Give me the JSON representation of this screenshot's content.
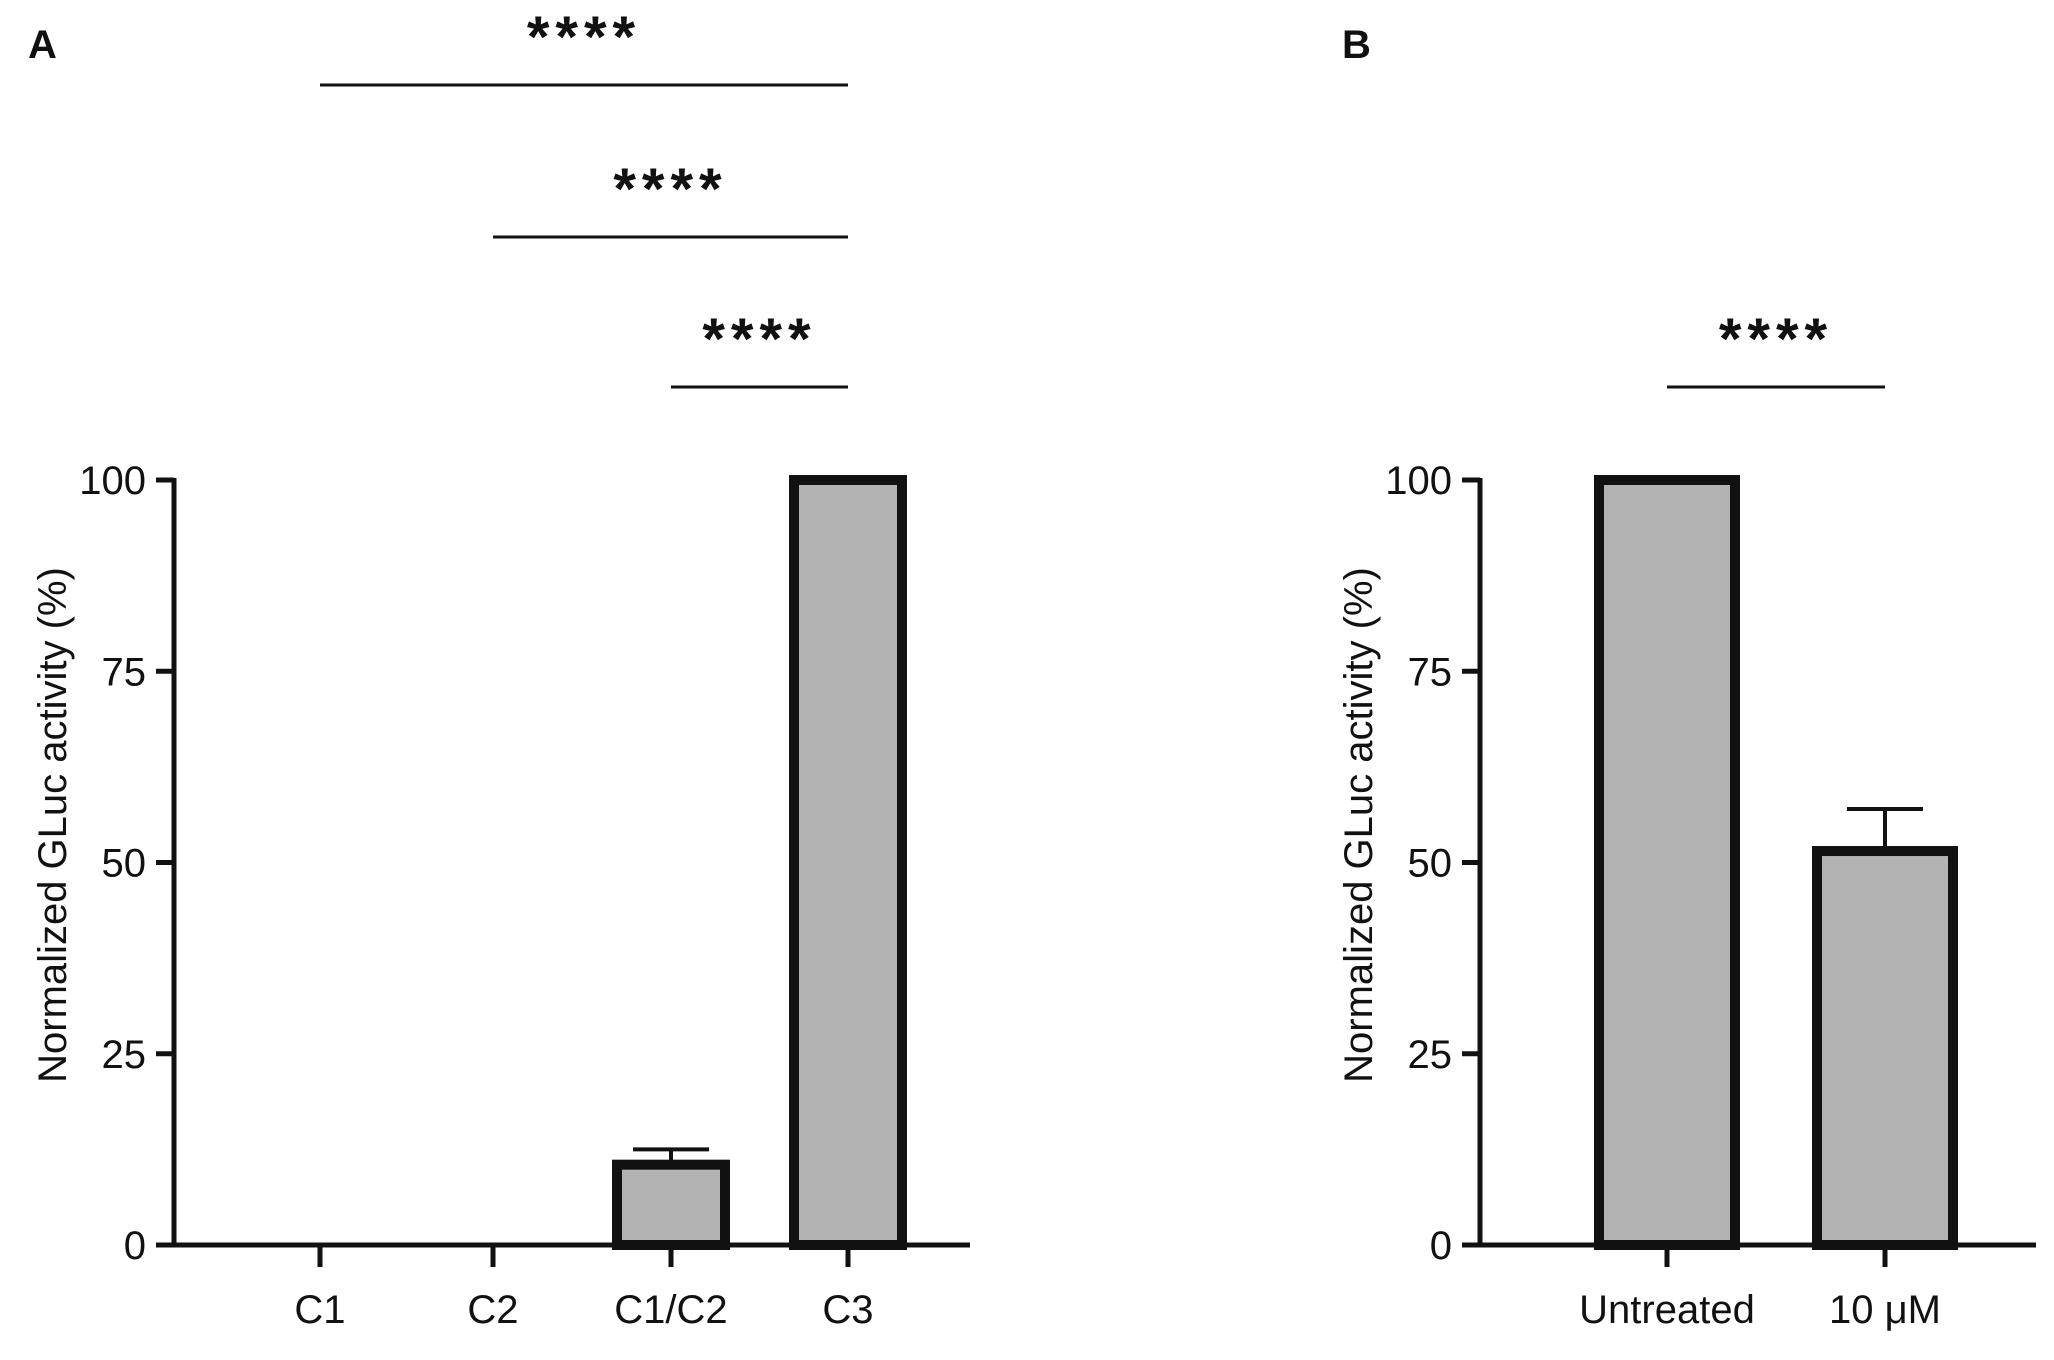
{
  "chart_data": [
    {
      "panel": "A",
      "type": "bar",
      "categories": [
        "C1",
        "C2",
        "C1/C2",
        "C3"
      ],
      "values": [
        0,
        0,
        10.5,
        100
      ],
      "errors": [
        0,
        0,
        2,
        0
      ],
      "ylabel": "Normalized GLuc activity (%)",
      "xlabel": "",
      "ylim": [
        0,
        100
      ],
      "yticks": [
        "0",
        "25",
        "50",
        "75",
        "100"
      ],
      "bar_color": "#b3b3b3",
      "significance": [
        {
          "from": "C1",
          "to": "C3",
          "label": "****"
        },
        {
          "from": "C2",
          "to": "C3",
          "label": "****"
        },
        {
          "from": "C1/C2",
          "to": "C3",
          "label": "****"
        }
      ]
    },
    {
      "panel": "B",
      "type": "bar",
      "categories": [
        "Untreated",
        "10 μM"
      ],
      "values": [
        100,
        51.5
      ],
      "errors": [
        0,
        5.5
      ],
      "ylabel": "Normalized GLuc activity (%)",
      "xlabel": "",
      "ylim": [
        0,
        100
      ],
      "yticks": [
        "0",
        "25",
        "50",
        "75",
        "100"
      ],
      "bar_color": "#b3b3b3",
      "significance": [
        {
          "from": "Untreated",
          "to": "10 μM",
          "label": "****"
        }
      ]
    }
  ]
}
